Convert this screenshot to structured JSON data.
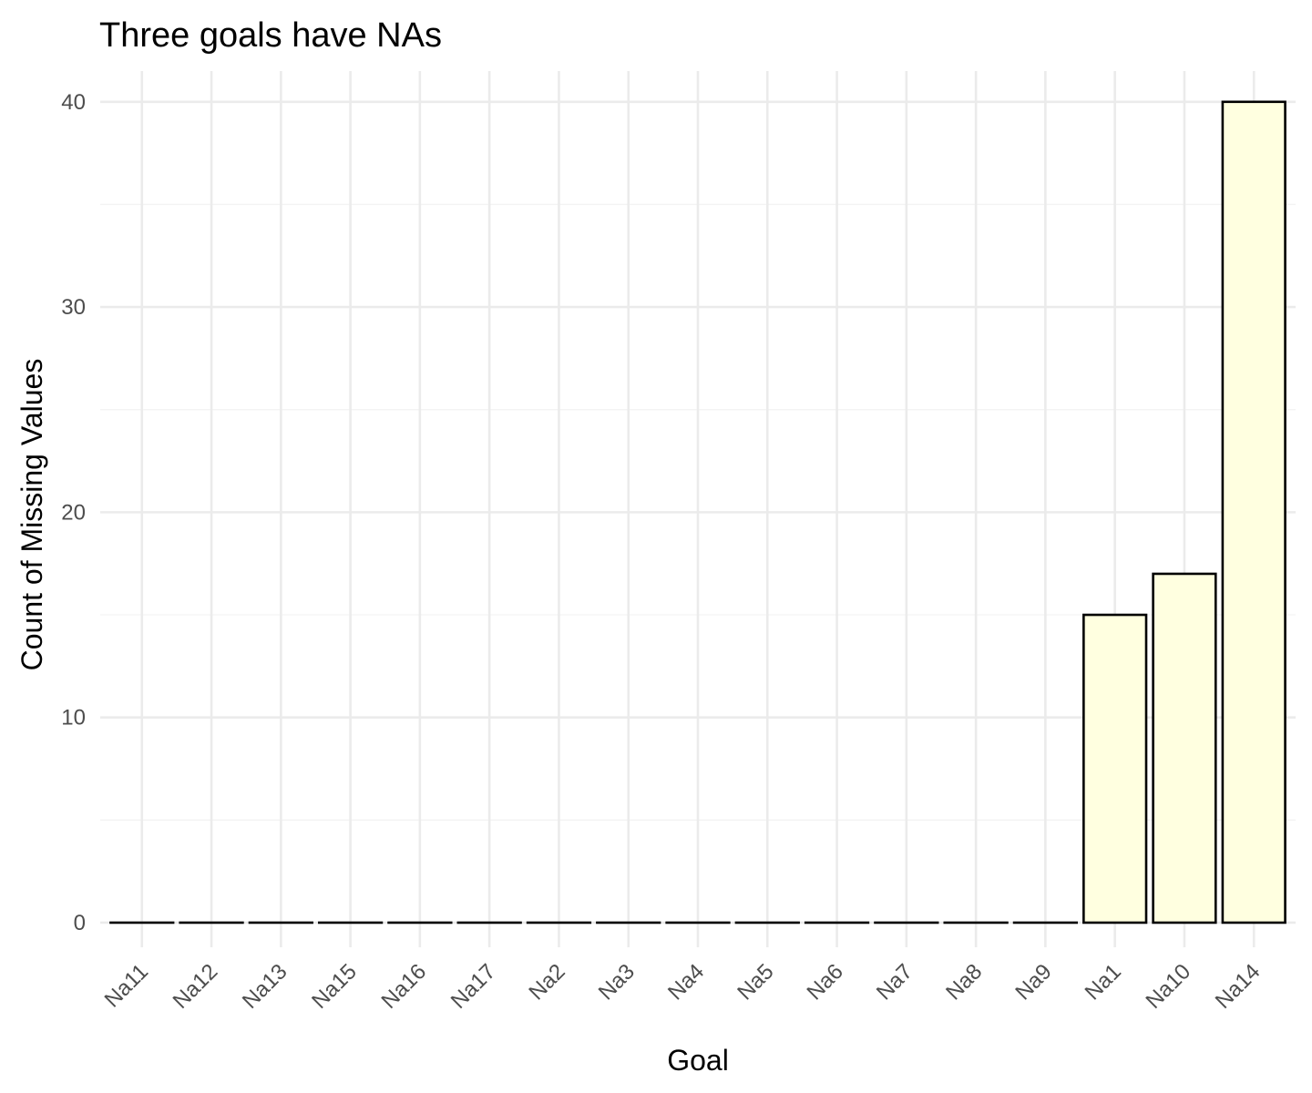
{
  "chart_data": {
    "type": "bar",
    "title": "Three goals have NAs",
    "xlabel": "Goal",
    "ylabel": "Count of Missing Values",
    "categories": [
      "Na11",
      "Na12",
      "Na13",
      "Na15",
      "Na16",
      "Na17",
      "Na2",
      "Na3",
      "Na4",
      "Na5",
      "Na6",
      "Na7",
      "Na8",
      "Na9",
      "Na1",
      "Na10",
      "Na14"
    ],
    "values": [
      0,
      0,
      0,
      0,
      0,
      0,
      0,
      0,
      0,
      0,
      0,
      0,
      0,
      0,
      15,
      17,
      40
    ],
    "yticks": [
      0,
      10,
      20,
      30,
      40
    ],
    "ylim": [
      -1.2,
      41.5
    ],
    "grid": true,
    "legend": "none",
    "colors": {
      "bar_fill": "#ffffe0",
      "bar_outline": "#000000"
    }
  }
}
